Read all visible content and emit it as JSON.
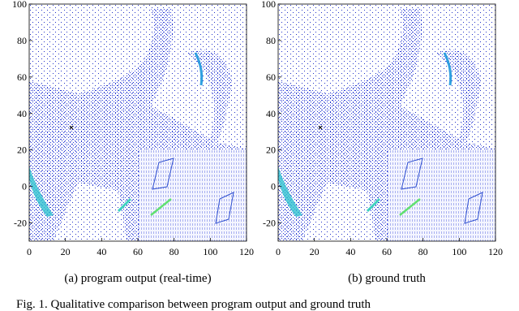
{
  "chart_data": [
    {
      "type": "scatter",
      "caption": "(a) program output (real-time)",
      "xlim": [
        0,
        120
      ],
      "ylim": [
        -30,
        100
      ],
      "xticks": [
        0,
        20,
        40,
        60,
        80,
        100,
        120
      ],
      "yticks": [
        -20,
        0,
        20,
        40,
        60,
        80,
        100
      ]
    },
    {
      "type": "scatter",
      "caption": "(b) ground truth",
      "xlim": [
        0,
        120
      ],
      "ylim": [
        -30,
        100
      ],
      "xticks": [
        0,
        20,
        40,
        60,
        80,
        100,
        120
      ],
      "yticks": [
        -20,
        0,
        20,
        40,
        60,
        80,
        100
      ]
    }
  ],
  "figure_caption": "Fig. 1. Qualitative comparison between program output and ground truth"
}
